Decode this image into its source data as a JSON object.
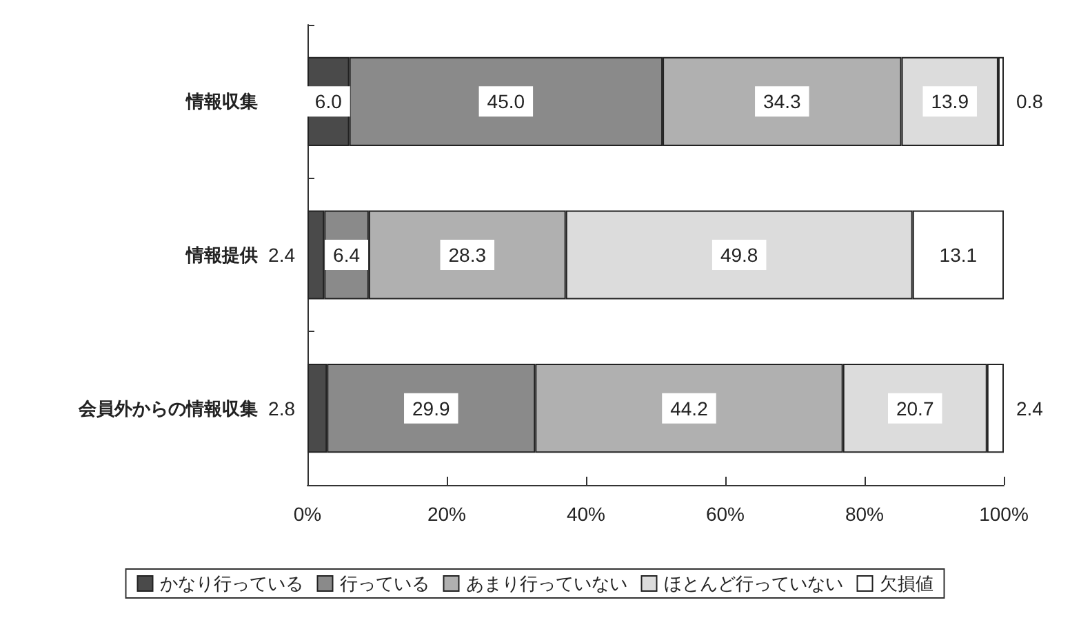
{
  "chart_data": {
    "type": "bar",
    "orientation": "horizontal",
    "stacked": true,
    "categories": [
      "情報収集",
      "情報提供",
      "会員外からの情報収集"
    ],
    "series": [
      {
        "name": "かなり行っている",
        "color": "#4a4a4a",
        "values": [
          6.0,
          2.4,
          2.8
        ],
        "value_labels": [
          "6.0",
          "2.4",
          "2.8"
        ]
      },
      {
        "name": "行っている",
        "color": "#8a8a8a",
        "values": [
          45.0,
          6.4,
          29.9
        ],
        "value_labels": [
          "45.0",
          "6.4",
          "29.9"
        ]
      },
      {
        "name": "あまり行っていない",
        "color": "#b0b0b0",
        "values": [
          34.3,
          28.3,
          44.2
        ],
        "value_labels": [
          "34.3",
          "28.3",
          "44.2"
        ]
      },
      {
        "name": "ほとんど行っていない",
        "color": "#dcdcdc",
        "values": [
          13.9,
          49.8,
          20.7
        ],
        "value_labels": [
          "13.9",
          "49.8",
          "20.7"
        ]
      },
      {
        "name": "欠損値",
        "color": "#ffffff",
        "values": [
          0.8,
          13.1,
          2.4
        ],
        "value_labels": [
          "0.8",
          "13.1",
          "2.4"
        ]
      }
    ],
    "xlim": [
      0,
      100
    ],
    "xticks": [
      {
        "value": 0,
        "label": "0%"
      },
      {
        "value": 20,
        "label": "20%"
      },
      {
        "value": 40,
        "label": "40%"
      },
      {
        "value": 60,
        "label": "60%"
      },
      {
        "value": 80,
        "label": "80%"
      },
      {
        "value": 100,
        "label": "100%"
      }
    ],
    "legend": "bottom",
    "grid": false
  }
}
